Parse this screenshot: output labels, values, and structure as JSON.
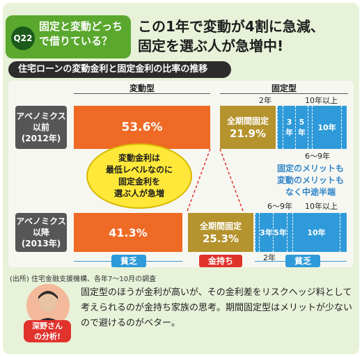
{
  "question": {
    "number": "Q22",
    "line1": "固定と変動どっち",
    "line2": "で借りている？"
  },
  "headline": {
    "line1": "この1年で変動が4割に急減、",
    "line2": "固定を選ぶ人が急増中!"
  },
  "chart_data": {
    "type": "bar",
    "title": "住宅ローンの変動金利と固定金利の比率の推移",
    "group_labels": {
      "variable": "変動型",
      "fixed": "固定型"
    },
    "rows": [
      {
        "label_line1": "アベノミクス",
        "label_line2": "以前",
        "label_line3": "(2012年)",
        "variable_value": 53.6,
        "variable_label": "53.6%",
        "full_fixed_label": "全期間固定",
        "full_fixed_value": 21.9,
        "full_fixed_value_label": "21.9%",
        "segments": [
          {
            "name": "2年",
            "value": 1.5
          },
          {
            "name": "3年",
            "value": 5.5
          },
          {
            "name": "5年",
            "value": 5.5
          },
          {
            "name": "6〜9年",
            "value": 1.0
          },
          {
            "name": "10年",
            "value": 9.8
          },
          {
            "name": "10年以上",
            "value": 1.2
          }
        ]
      },
      {
        "label_line1": "アベノミクス",
        "label_line2": "以降",
        "label_line3": "(2013年)",
        "variable_value": 41.3,
        "variable_label": "41.3%",
        "full_fixed_label": "全期間固定",
        "full_fixed_value": 25.3,
        "full_fixed_value_label": "25.3%",
        "segments": [
          {
            "name": "2年",
            "value": 1.0
          },
          {
            "name": "3年",
            "value": 5.5
          },
          {
            "name": "5年",
            "value": 5.5
          },
          {
            "name": "6〜9年",
            "value": 1.2
          },
          {
            "name": "10年",
            "value": 18.5
          },
          {
            "name": "10年以上",
            "value": 1.7
          }
        ]
      }
    ],
    "segment_labels": {
      "y2": "2年",
      "y3": "3年",
      "y5": "5年",
      "y6_9": "6〜9年",
      "y10": "10年",
      "y10plus": "10年以上"
    },
    "annotations": {
      "bubble_line1": "変動金利は",
      "bubble_line2": "最低レベルなのに",
      "bubble_line3": "固定金利を",
      "bubble_line4": "選ぶ人が急増",
      "merit_line1": "固定のメリットも",
      "merit_line2": "変動のメリットも",
      "merit_line3": "なく中途半端",
      "poor1": "貧乏",
      "rich": "金持ち",
      "poor2": "貧乏"
    }
  },
  "source": "(出所) 住宅金融支援機構、各年7〜10月の調査",
  "person": {
    "line1": "深野さん",
    "line2": "の分析!"
  },
  "comment": "固定型のほうが金利が高いが、その金利差をリスクヘッジ料として考えられるのが金持ち家族の思考。期間固定型はメリットが少ないので避けるのがベター。",
  "colors": {
    "variable": "#ee6a25",
    "full_fixed": "#b5932d",
    "term_fixed": "#2f9ad9",
    "accent_green": "#5aa82e"
  }
}
